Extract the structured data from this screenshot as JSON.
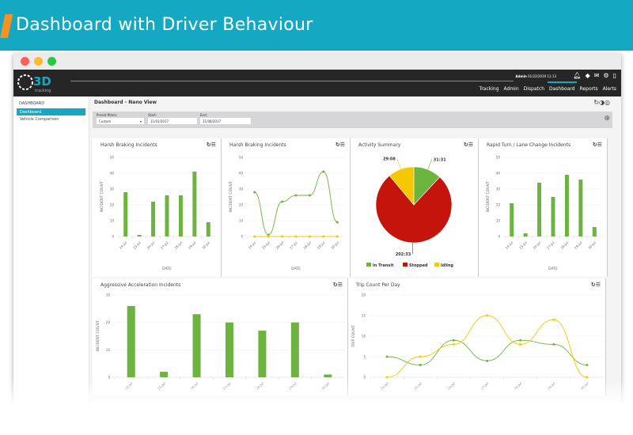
{
  "banner": {
    "title": "Dashboard with Driver Behaviour"
  },
  "header": {
    "logo": "3D tracking",
    "user": "Admin",
    "datetime": "01/22/2019 11:13",
    "icons": [
      "bell-icon",
      "tag-icon",
      "envelope-icon",
      "gear-icon",
      "phone-icon"
    ],
    "nav": [
      "Tracking",
      "Admin",
      "Dispatch",
      "Dashboard",
      "Reports",
      "Alerts"
    ],
    "active": "Dashboard"
  },
  "sidebar": {
    "heading": "DASHBOARD",
    "items": [
      {
        "label": "Dashboard",
        "active": true
      },
      {
        "label": "Vehicle Comparison",
        "active": false
      }
    ]
  },
  "panel": {
    "title": "Dashboard - Nano View",
    "filters": {
      "preset_label": "Preset filters:",
      "preset_value": "Custom",
      "start_label": "Start:",
      "start_value": "11/01/2017",
      "end_label": "End:",
      "end_value": "11/08/2017"
    }
  },
  "colors": {
    "accent": "#15a8c2",
    "green": "#6db33f",
    "red": "#c4140c",
    "yellow": "#f5c800"
  },
  "chart_data": [
    {
      "type": "bar",
      "title": "Harsh Braking Incidents",
      "categories": [
        "24-Jul",
        "25-Jul",
        "26-Jul",
        "27-Jul",
        "28-Jul",
        "29-Jul",
        "30-Jul"
      ],
      "values": [
        28,
        1,
        22,
        26,
        26,
        41,
        9
      ],
      "xlabel": "DATE",
      "ylabel": "INCIDENT COUNT",
      "ylim": [
        0,
        50
      ],
      "yticks": [
        0,
        10,
        20,
        30,
        40,
        50
      ]
    },
    {
      "type": "line",
      "title": "Harsh Braking Incidents",
      "categories": [
        "24-Jul",
        "25-Jul",
        "26-Jul",
        "27-Jul",
        "28-Jul",
        "29-Jul",
        "30-Jul"
      ],
      "series": [
        {
          "values": [
            28,
            1,
            22,
            26,
            26,
            41,
            9
          ],
          "color": "#6db33f"
        },
        {
          "values": [
            0,
            0,
            0,
            0,
            0,
            0,
            0
          ],
          "color": "#f5c800"
        }
      ],
      "xlabel": "DATE",
      "ylabel": "INCIDENT COUNT",
      "ylim": [
        0,
        50
      ],
      "yticks": [
        0,
        10,
        20,
        30,
        40,
        50
      ]
    },
    {
      "type": "pie",
      "title": "Activity Summary",
      "slices": [
        {
          "name": "In Transit",
          "label": "31:31",
          "value": 1891,
          "color": "#6db33f"
        },
        {
          "name": "Stopped",
          "label": "202:33",
          "value": 12153,
          "color": "#c4140c"
        },
        {
          "name": "Idling",
          "label": "29:08",
          "value": 1748,
          "color": "#f5c800"
        }
      ],
      "legend": "bottom"
    },
    {
      "type": "bar",
      "title": "Rapid Turn / Lane Change Incidents",
      "categories": [
        "24-Jul",
        "25-Jul",
        "26-Jul",
        "27-Jul",
        "28-Jul",
        "29-Jul",
        "30-Jul"
      ],
      "values": [
        21,
        2,
        34,
        25,
        39,
        36,
        6
      ],
      "xlabel": "DATE",
      "ylabel": "INCIDENT COUNT",
      "ylim": [
        0,
        50
      ],
      "yticks": [
        0,
        10,
        20,
        30,
        40,
        50
      ]
    },
    {
      "type": "bar",
      "title": "Aggressive Acceleration Incidents",
      "categories": [
        "24-Jul",
        "25-Jul",
        "26-Jul",
        "27-Jul",
        "28-Jul",
        "29-Jul",
        "30-Jul"
      ],
      "values": [
        26,
        2,
        23,
        20,
        17,
        20,
        1
      ],
      "ylabel": "INCIDENT COUNT",
      "ylim": [
        0,
        30
      ],
      "yticks": [
        0,
        10,
        20,
        30
      ]
    },
    {
      "type": "line",
      "title": "Trip Count Per Day",
      "categories": [
        "24-Jul",
        "25-Jul",
        "26-Jul",
        "27-Jul",
        "28-Jul",
        "29-Jul",
        "30-Jul"
      ],
      "series": [
        {
          "values": [
            5,
            3,
            9,
            4,
            9,
            8,
            3
          ],
          "color": "#6db33f"
        },
        {
          "values": [
            0,
            5,
            8,
            15,
            8,
            14,
            0
          ],
          "color": "#f5c800"
        }
      ],
      "ylabel": "TRIP COUNT",
      "ylim": [
        0,
        20
      ],
      "yticks": [
        0,
        5,
        10,
        15,
        20
      ]
    }
  ]
}
